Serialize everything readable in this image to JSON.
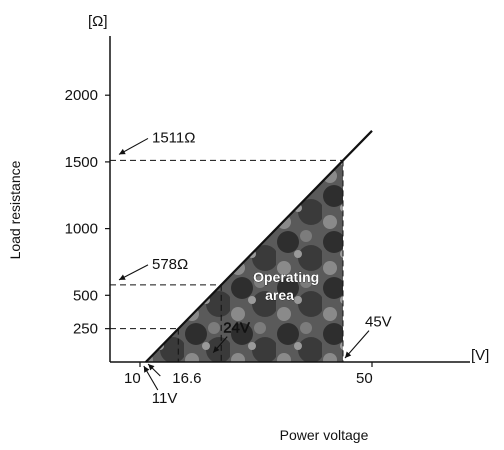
{
  "chart_data": {
    "type": "area",
    "title": "",
    "xlabel": "Power voltage",
    "ylabel": "Load resistance",
    "x_unit": "[V]",
    "y_unit": "[Ω]",
    "xlim": [
      0,
      60
    ],
    "ylim": [
      0,
      2500
    ],
    "x_ticks": [
      {
        "value": 10,
        "label": "10"
      },
      {
        "value": 50,
        "label": "50"
      }
    ],
    "y_ticks": [
      {
        "value": 250,
        "label": "250"
      },
      {
        "value": 500,
        "label": "500"
      },
      {
        "value": 1000,
        "label": "1000"
      },
      {
        "value": 1500,
        "label": "1500"
      },
      {
        "value": 2000,
        "label": "2000"
      }
    ],
    "series": [
      {
        "x": [
          11,
          16.6,
          24,
          45,
          50
        ],
        "y": [
          0,
          250,
          578,
          1511,
          1733
        ]
      }
    ],
    "region": {
      "label": "Operating area",
      "x": [
        11,
        45,
        45
      ],
      "y": [
        0,
        1511,
        0
      ]
    },
    "annotations": [
      {
        "label": "1511Ω",
        "x": 45,
        "y": 1511
      },
      {
        "label": "578Ω",
        "x": 24,
        "y": 578
      },
      {
        "label": "16.6",
        "x": 16.6,
        "y": 250
      },
      {
        "label": "24V",
        "x": 24,
        "y": 578
      },
      {
        "label": "45V",
        "x": 45,
        "y": 1511
      },
      {
        "label": "11V",
        "x": 11,
        "y": 0
      }
    ],
    "grid": false,
    "legend": "none"
  }
}
